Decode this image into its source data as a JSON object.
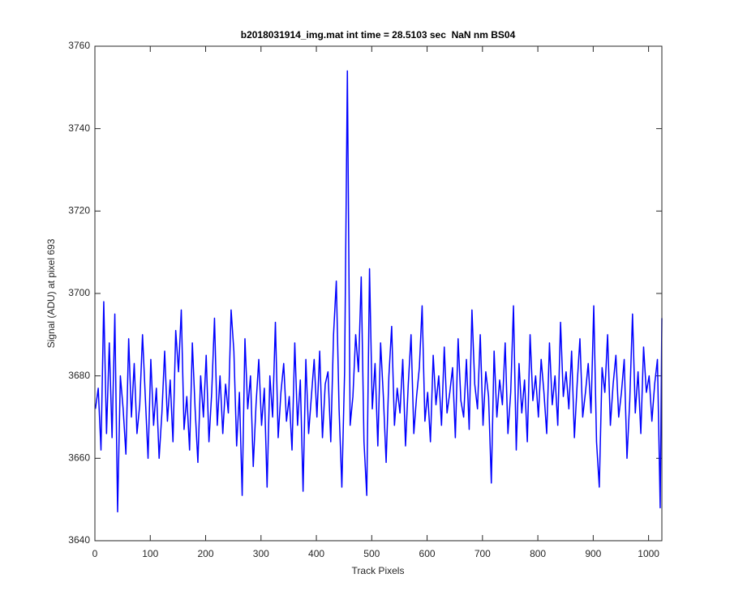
{
  "chart_data": {
    "type": "line",
    "title": "b2018031914_img.mat int time = 28.5103 sec  NaN nm BS04",
    "x_label": "Track Pixels",
    "y_label": "Signal (ADU) at pixel 693",
    "xlim": [
      0,
      1024
    ],
    "ylim": [
      3640,
      3760
    ],
    "xticks": [
      0,
      100,
      200,
      300,
      400,
      500,
      600,
      700,
      800,
      900,
      1000
    ],
    "yticks": [
      3640,
      3660,
      3680,
      3700,
      3720,
      3740,
      3760
    ],
    "grid": false,
    "series": [
      {
        "name": "signal",
        "color": "#0000ff",
        "x": [
          1,
          6,
          11,
          16,
          21,
          26,
          31,
          36,
          41,
          46,
          51,
          56,
          61,
          66,
          71,
          76,
          81,
          86,
          91,
          96,
          101,
          106,
          111,
          116,
          121,
          126,
          131,
          136,
          141,
          146,
          151,
          156,
          161,
          166,
          171,
          176,
          181,
          186,
          191,
          196,
          201,
          206,
          211,
          216,
          221,
          226,
          231,
          236,
          241,
          246,
          251,
          256,
          261,
          266,
          271,
          276,
          281,
          286,
          291,
          296,
          301,
          306,
          311,
          316,
          321,
          326,
          331,
          336,
          341,
          346,
          351,
          356,
          361,
          366,
          371,
          376,
          381,
          386,
          391,
          396,
          401,
          406,
          411,
          416,
          421,
          426,
          431,
          436,
          441,
          446,
          451,
          456,
          461,
          466,
          471,
          476,
          481,
          486,
          491,
          496,
          501,
          506,
          511,
          516,
          521,
          526,
          531,
          536,
          541,
          546,
          551,
          556,
          561,
          566,
          571,
          576,
          581,
          586,
          591,
          596,
          601,
          606,
          611,
          616,
          621,
          626,
          631,
          636,
          641,
          646,
          651,
          656,
          661,
          666,
          671,
          676,
          681,
          686,
          691,
          696,
          701,
          706,
          711,
          716,
          721,
          726,
          731,
          736,
          741,
          746,
          751,
          756,
          761,
          766,
          771,
          776,
          781,
          786,
          791,
          796,
          801,
          806,
          811,
          816,
          821,
          826,
          831,
          836,
          841,
          846,
          851,
          856,
          861,
          866,
          871,
          876,
          881,
          886,
          891,
          896,
          901,
          906,
          911,
          916,
          921,
          926,
          931,
          936,
          941,
          946,
          951,
          956,
          961,
          966,
          971,
          976,
          981,
          986,
          991,
          996,
          1001,
          1006,
          1011,
          1016,
          1021,
          1024
        ],
        "values": [
          3672,
          3677,
          3662,
          3698,
          3666,
          3688,
          3665,
          3695,
          3647,
          3680,
          3672,
          3661,
          3689,
          3670,
          3683,
          3666,
          3673,
          3690,
          3675,
          3660,
          3684,
          3668,
          3677,
          3660,
          3671,
          3686,
          3669,
          3679,
          3664,
          3691,
          3681,
          3696,
          3667,
          3675,
          3662,
          3688,
          3672,
          3659,
          3680,
          3670,
          3685,
          3664,
          3676,
          3694,
          3668,
          3680,
          3666,
          3678,
          3671,
          3696,
          3686,
          3663,
          3676,
          3651,
          3689,
          3672,
          3680,
          3658,
          3673,
          3684,
          3668,
          3677,
          3653,
          3680,
          3670,
          3693,
          3665,
          3676,
          3683,
          3669,
          3675,
          3662,
          3688,
          3668,
          3679,
          3652,
          3684,
          3666,
          3675,
          3684,
          3670,
          3686,
          3665,
          3678,
          3681,
          3664,
          3690,
          3703,
          3672,
          3653,
          3681,
          3754,
          3668,
          3675,
          3690,
          3681,
          3704,
          3664,
          3651,
          3706,
          3672,
          3683,
          3663,
          3688,
          3675,
          3659,
          3680,
          3692,
          3668,
          3677,
          3671,
          3684,
          3663,
          3678,
          3690,
          3666,
          3675,
          3682,
          3697,
          3669,
          3676,
          3664,
          3685,
          3673,
          3680,
          3668,
          3687,
          3671,
          3676,
          3682,
          3665,
          3689,
          3674,
          3670,
          3684,
          3667,
          3696,
          3678,
          3672,
          3690,
          3668,
          3681,
          3675,
          3654,
          3686,
          3670,
          3679,
          3673,
          3688,
          3666,
          3676,
          3697,
          3662,
          3683,
          3671,
          3679,
          3664,
          3690,
          3674,
          3680,
          3670,
          3684,
          3676,
          3666,
          3688,
          3673,
          3680,
          3668,
          3693,
          3675,
          3681,
          3672,
          3686,
          3665,
          3678,
          3689,
          3670,
          3676,
          3683,
          3671,
          3697,
          3664,
          3653,
          3682,
          3676,
          3690,
          3668,
          3678,
          3685,
          3670,
          3676,
          3684,
          3660,
          3674,
          3695,
          3671,
          3681,
          3666,
          3687,
          3676,
          3680,
          3669,
          3678,
          3684,
          3648,
          3694
        ]
      }
    ]
  }
}
